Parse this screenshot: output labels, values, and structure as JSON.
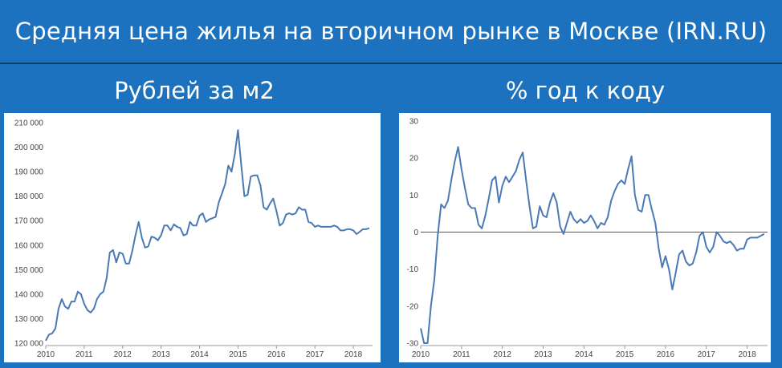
{
  "header": {
    "title": "Средняя цена жилья на вторичном рынке в Москве (IRN.RU)"
  },
  "chart_data": [
    {
      "type": "line",
      "title": "Рублей за м2",
      "xlabel": "",
      "ylabel": "",
      "color": "#4a7ab5",
      "x_tick_labels": [
        "2010",
        "2011",
        "2012",
        "2013",
        "2014",
        "2015",
        "2016",
        "2017",
        "2018"
      ],
      "y_tick_labels": [
        "120 000",
        "130 000",
        "140 000",
        "150 000",
        "160 000",
        "170 000",
        "180 000",
        "190 000",
        "200 000",
        "210 000"
      ],
      "xlim": [
        2010,
        2018.5
      ],
      "ylim": [
        120000,
        210000
      ],
      "x": [
        2010.0,
        2010.083,
        2010.167,
        2010.25,
        2010.333,
        2010.417,
        2010.5,
        2010.583,
        2010.667,
        2010.75,
        2010.833,
        2010.917,
        2011.0,
        2011.083,
        2011.167,
        2011.25,
        2011.333,
        2011.417,
        2011.5,
        2011.583,
        2011.667,
        2011.75,
        2011.833,
        2011.917,
        2012.0,
        2012.083,
        2012.167,
        2012.25,
        2012.333,
        2012.417,
        2012.5,
        2012.583,
        2012.667,
        2012.75,
        2012.833,
        2012.917,
        2013.0,
        2013.083,
        2013.167,
        2013.25,
        2013.333,
        2013.417,
        2013.5,
        2013.583,
        2013.667,
        2013.75,
        2013.833,
        2013.917,
        2014.0,
        2014.083,
        2014.167,
        2014.25,
        2014.333,
        2014.417,
        2014.5,
        2014.583,
        2014.667,
        2014.75,
        2014.833,
        2014.917,
        2015.0,
        2015.083,
        2015.167,
        2015.25,
        2015.333,
        2015.417,
        2015.5,
        2015.583,
        2015.667,
        2015.75,
        2015.833,
        2015.917,
        2016.0,
        2016.083,
        2016.167,
        2016.25,
        2016.333,
        2016.417,
        2016.5,
        2016.583,
        2016.667,
        2016.75,
        2016.833,
        2016.917,
        2017.0,
        2017.083,
        2017.167,
        2017.25,
        2017.333,
        2017.417,
        2017.5,
        2017.583,
        2017.667,
        2017.75,
        2017.833,
        2017.917,
        2018.0,
        2018.083,
        2018.167,
        2018.25,
        2018.333,
        2018.417
      ],
      "values": [
        121000,
        123500,
        124000,
        126000,
        134000,
        138000,
        135000,
        134000,
        137000,
        137000,
        141000,
        140000,
        136000,
        133500,
        132500,
        134000,
        138000,
        140000,
        141000,
        146500,
        157000,
        158000,
        153000,
        157000,
        156500,
        152500,
        152500,
        157500,
        164000,
        169500,
        163000,
        159000,
        159500,
        163500,
        163000,
        162000,
        164000,
        168000,
        168000,
        166000,
        168500,
        167500,
        167000,
        164000,
        164500,
        169500,
        168000,
        168000,
        172000,
        173000,
        169500,
        170500,
        171000,
        171500,
        177500,
        181000,
        185000,
        192500,
        190000,
        197000,
        207000,
        193000,
        180000,
        180500,
        188000,
        188500,
        188500,
        184500,
        175500,
        174500,
        177000,
        179000,
        174000,
        168000,
        169000,
        172500,
        173000,
        172500,
        173000,
        175500,
        174500,
        174500,
        169500,
        169000,
        167500,
        168000,
        167500,
        167500,
        167500,
        167500,
        168000,
        167500,
        166000,
        166000,
        166500,
        166500,
        166000,
        164500,
        165500,
        166500,
        166500,
        167000
      ]
    },
    {
      "type": "line",
      "title": "% год к коду",
      "xlabel": "",
      "ylabel": "",
      "color": "#4a7ab5",
      "x_tick_labels": [
        "2010",
        "2011",
        "2012",
        "2013",
        "2014",
        "2015",
        "2016",
        "2017",
        "2018"
      ],
      "y_tick_labels": [
        "-30",
        "-20",
        "-10",
        "0",
        "10",
        "20",
        "30"
      ],
      "xlim": [
        2010,
        2018.5
      ],
      "ylim": [
        -30,
        30
      ],
      "x": [
        2010.0,
        2010.083,
        2010.167,
        2010.25,
        2010.333,
        2010.417,
        2010.5,
        2010.583,
        2010.667,
        2010.75,
        2010.833,
        2010.917,
        2011.0,
        2011.083,
        2011.167,
        2011.25,
        2011.333,
        2011.417,
        2011.5,
        2011.583,
        2011.667,
        2011.75,
        2011.833,
        2011.917,
        2012.0,
        2012.083,
        2012.167,
        2012.25,
        2012.333,
        2012.417,
        2012.5,
        2012.583,
        2012.667,
        2012.75,
        2012.833,
        2012.917,
        2013.0,
        2013.083,
        2013.167,
        2013.25,
        2013.333,
        2013.417,
        2013.5,
        2013.583,
        2013.667,
        2013.75,
        2013.833,
        2013.917,
        2014.0,
        2014.083,
        2014.167,
        2014.25,
        2014.333,
        2014.417,
        2014.5,
        2014.583,
        2014.667,
        2014.75,
        2014.833,
        2014.917,
        2015.0,
        2015.083,
        2015.167,
        2015.25,
        2015.333,
        2015.417,
        2015.5,
        2015.583,
        2015.667,
        2015.75,
        2015.833,
        2015.917,
        2016.0,
        2016.083,
        2016.167,
        2016.25,
        2016.333,
        2016.417,
        2016.5,
        2016.583,
        2016.667,
        2016.75,
        2016.833,
        2016.917,
        2017.0,
        2017.083,
        2017.167,
        2017.25,
        2017.333,
        2017.417,
        2017.5,
        2017.583,
        2017.667,
        2017.75,
        2017.833,
        2017.917,
        2018.0,
        2018.083,
        2018.167,
        2018.25,
        2018.333,
        2018.417
      ],
      "values": [
        -26,
        -30,
        -30,
        -20,
        -13,
        -1,
        7.5,
        6.5,
        8.5,
        14,
        19,
        23,
        17,
        12,
        7.5,
        6.5,
        6.5,
        2,
        1,
        4.5,
        9,
        14,
        15,
        8,
        12.5,
        15,
        13.5,
        15,
        16.5,
        19.5,
        21.5,
        14,
        7,
        1,
        1.5,
        7,
        4.5,
        4,
        8,
        10.5,
        8,
        1.5,
        -0.5,
        2.5,
        5.5,
        3.5,
        2.5,
        3.5,
        2.5,
        3,
        4.5,
        3,
        1,
        2.5,
        2,
        4,
        8.5,
        11,
        13,
        14,
        13,
        17,
        20.5,
        10,
        6,
        5.5,
        10,
        10,
        6,
        2.5,
        -4.5,
        -9.5,
        -6.5,
        -10,
        -15.5,
        -11,
        -6,
        -5,
        -8,
        -9,
        -8.5,
        -5.5,
        -1,
        0,
        -4,
        -5.5,
        -4,
        0,
        -1,
        -2.5,
        -3,
        -2.5,
        -3.5,
        -5,
        -4.5,
        -4.5,
        -2,
        -1.5,
        -1.5,
        -1.5,
        -1,
        -0.5
      ]
    }
  ]
}
